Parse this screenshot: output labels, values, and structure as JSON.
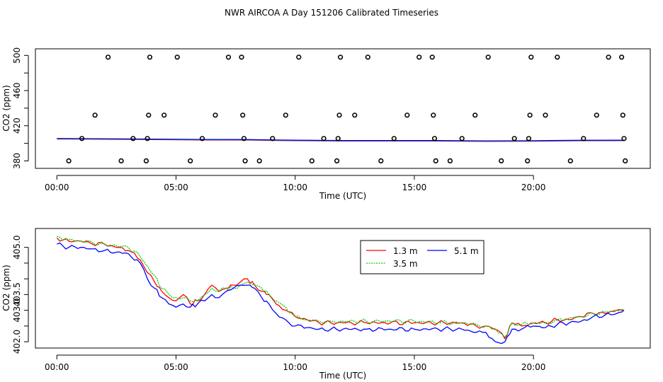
{
  "title": "NWR AIRCOA A  Day 151206  Calibrated Timeseries",
  "colors": {
    "axes": "#000000",
    "red": "#ff0000",
    "green": "#00cc00",
    "blue": "#0000ff"
  },
  "chart_data": [
    {
      "type": "scatter",
      "xlabel": "Time (UTC)",
      "ylabel": "CO2 (ppm)",
      "xlim": [
        -0.9,
        24.9
      ],
      "ylim": [
        371.5,
        507.5
      ],
      "xticks": [
        0,
        5,
        10,
        15,
        20
      ],
      "xticklabels": [
        "00:00",
        "05:00",
        "10:00",
        "15:00",
        "20:00"
      ],
      "yticks": [
        380,
        400,
        420,
        440,
        460,
        480,
        500
      ],
      "yticklabels": [
        "380",
        "",
        "420",
        "",
        "460",
        "",
        "500"
      ],
      "points": [
        [
          0.5,
          380
        ],
        [
          1.05,
          405.5
        ],
        [
          1.6,
          432
        ],
        [
          2.15,
          498
        ],
        [
          2.7,
          380
        ],
        [
          3.2,
          405.5
        ],
        [
          3.75,
          380
        ],
        [
          3.8,
          405.5
        ],
        [
          3.85,
          432
        ],
        [
          3.9,
          498
        ],
        [
          4.5,
          432
        ],
        [
          5.05,
          498
        ],
        [
          5.6,
          380
        ],
        [
          6.1,
          405.5
        ],
        [
          6.65,
          432
        ],
        [
          7.2,
          498
        ],
        [
          7.75,
          498
        ],
        [
          7.8,
          432
        ],
        [
          7.85,
          405.5
        ],
        [
          7.9,
          380
        ],
        [
          8.5,
          380
        ],
        [
          9.05,
          405.5
        ],
        [
          9.6,
          432
        ],
        [
          10.15,
          498
        ],
        [
          10.7,
          380
        ],
        [
          11.2,
          405.5
        ],
        [
          11.75,
          380
        ],
        [
          11.8,
          405.5
        ],
        [
          11.85,
          432
        ],
        [
          11.9,
          498
        ],
        [
          12.5,
          432
        ],
        [
          13.05,
          498
        ],
        [
          13.6,
          380
        ],
        [
          14.15,
          405.5
        ],
        [
          14.7,
          432
        ],
        [
          15.2,
          498
        ],
        [
          15.75,
          498
        ],
        [
          15.8,
          432
        ],
        [
          15.85,
          405.5
        ],
        [
          15.9,
          380
        ],
        [
          16.5,
          380
        ],
        [
          17.0,
          405.5
        ],
        [
          17.55,
          432
        ],
        [
          18.1,
          498
        ],
        [
          18.65,
          380
        ],
        [
          19.2,
          405.5
        ],
        [
          19.75,
          380
        ],
        [
          19.8,
          405.5
        ],
        [
          19.85,
          432
        ],
        [
          19.9,
          498
        ],
        [
          20.5,
          432
        ],
        [
          21.0,
          498
        ],
        [
          21.55,
          380
        ],
        [
          22.1,
          405.5
        ],
        [
          22.65,
          432
        ],
        [
          23.15,
          498
        ],
        [
          23.7,
          498
        ],
        [
          23.75,
          432
        ],
        [
          23.8,
          405.5
        ],
        [
          23.85,
          380
        ]
      ],
      "line": {
        "x": [
          0,
          2,
          4,
          6,
          8,
          10,
          12,
          14,
          16,
          18,
          20,
          22,
          23.8
        ],
        "y": [
          405.2,
          405.0,
          404.6,
          404.2,
          404.0,
          403.3,
          402.9,
          402.9,
          402.9,
          402.6,
          402.7,
          403.2,
          403.3
        ]
      }
    },
    {
      "type": "line",
      "xlabel": "Time (UTC)",
      "ylabel": "CO2 (ppm)",
      "xlim": [
        -0.9,
        24.9
      ],
      "ylim": [
        401.8,
        405.6
      ],
      "xticks": [
        0,
        5,
        10,
        15,
        20
      ],
      "xticklabels": [
        "00:00",
        "05:00",
        "10:00",
        "15:00",
        "20:00"
      ],
      "yticks": [
        402.0,
        402.5,
        403.0,
        403.5,
        404.0,
        404.5,
        405.0
      ],
      "yticklabels": [
        "402.0",
        "",
        "403.0",
        "403.5",
        "",
        "",
        "405.0"
      ],
      "legend": {
        "position": "top-center"
      },
      "x": [
        0,
        0.5,
        1,
        1.5,
        2,
        2.5,
        3,
        3.5,
        3.8,
        4.1,
        4.4,
        4.7,
        5,
        5.3,
        5.6,
        5.9,
        6.2,
        6.5,
        6.8,
        7.1,
        7.4,
        7.7,
        8,
        8.3,
        8.6,
        8.9,
        9.2,
        9.6,
        10,
        10.5,
        11,
        11.5,
        12,
        13,
        14,
        15,
        16,
        17,
        17.6,
        18.0,
        18.4,
        18.8,
        19.1,
        19.5,
        20,
        20.5,
        21,
        21.5,
        22,
        22.5,
        23,
        23.5,
        23.8
      ],
      "series": [
        {
          "name": "1.3 m",
          "color": "#ff0000",
          "values": [
            405.3,
            405.2,
            405.2,
            405.1,
            405.1,
            405.0,
            404.9,
            404.6,
            404.2,
            403.9,
            403.6,
            403.4,
            403.3,
            403.5,
            403.2,
            403.3,
            403.5,
            403.8,
            403.6,
            403.7,
            403.8,
            403.9,
            404.0,
            403.8,
            403.6,
            403.5,
            403.2,
            403.0,
            402.8,
            402.7,
            402.6,
            402.6,
            402.6,
            402.6,
            402.6,
            402.6,
            402.6,
            402.6,
            402.5,
            402.5,
            402.4,
            402.1,
            402.6,
            402.5,
            402.6,
            402.6,
            402.7,
            402.7,
            402.8,
            402.9,
            402.9,
            403.0,
            403.0
          ]
        },
        {
          "name": "3.5 m",
          "color": "#00cc00",
          "values": [
            405.35,
            405.25,
            405.2,
            405.15,
            405.1,
            405.05,
            405.0,
            404.7,
            404.4,
            404.1,
            403.7,
            403.5,
            403.4,
            403.4,
            403.3,
            403.3,
            403.5,
            403.7,
            403.6,
            403.7,
            403.7,
            403.8,
            403.9,
            403.8,
            403.7,
            403.5,
            403.3,
            403.1,
            402.8,
            402.7,
            402.65,
            402.65,
            402.65,
            402.65,
            402.65,
            402.65,
            402.6,
            402.6,
            402.55,
            402.5,
            402.4,
            402.15,
            402.6,
            402.55,
            402.6,
            402.6,
            402.7,
            402.75,
            402.8,
            402.9,
            402.95,
            403.0,
            403.0
          ]
        },
        {
          "name": "5.1 m",
          "color": "#0000ff",
          "values": [
            405.1,
            405.0,
            405.0,
            404.95,
            404.9,
            404.85,
            404.8,
            404.5,
            404.0,
            403.7,
            403.4,
            403.2,
            403.1,
            403.2,
            403.1,
            403.2,
            403.3,
            403.5,
            403.4,
            403.6,
            403.7,
            403.8,
            403.8,
            403.7,
            403.4,
            403.2,
            402.9,
            402.7,
            402.5,
            402.45,
            402.4,
            402.4,
            402.4,
            402.4,
            402.4,
            402.4,
            402.4,
            402.4,
            402.3,
            402.3,
            402.0,
            402.0,
            402.4,
            402.4,
            402.5,
            402.45,
            402.55,
            402.6,
            402.65,
            402.8,
            402.85,
            402.9,
            403.0
          ]
        }
      ]
    }
  ]
}
